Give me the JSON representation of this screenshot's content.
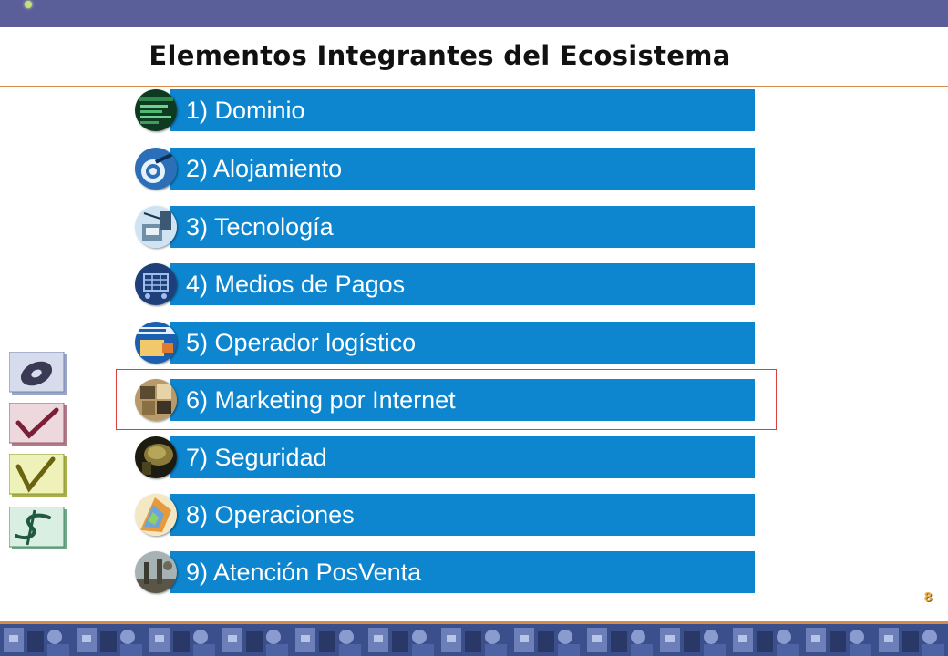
{
  "slide": {
    "title": "Elementos Integrantes del Ecosistema",
    "page_number": "8"
  },
  "items": [
    {
      "label": "1) Dominio",
      "icon": "domain-icon"
    },
    {
      "label": "2) Alojamiento",
      "icon": "hosting-icon"
    },
    {
      "label": "3) Tecnología",
      "icon": "technology-icon"
    },
    {
      "label": "4) Medios de Pagos",
      "icon": "payment-cart-icon"
    },
    {
      "label": "5) Operador logístico",
      "icon": "logistics-icon"
    },
    {
      "label": "6) Marketing por Internet",
      "icon": "marketing-icon"
    },
    {
      "label": "7) Seguridad",
      "icon": "security-icon"
    },
    {
      "label": "8) Operaciones",
      "icon": "operations-icon"
    },
    {
      "label": "9) Atención PosVenta",
      "icon": "after-sales-icon"
    }
  ],
  "highlighted_item": "6) Marketing por Internet",
  "colors": {
    "header_bar": "#5a5f9a",
    "item_bar": "#0d86cf",
    "rule": "#d98b4a",
    "highlight_border": "#d94040",
    "page_number": "#e8b24a"
  },
  "side_icons": [
    "disc-icon",
    "checkmark-red-icon",
    "checkmark-yellow-icon",
    "dollar-sign-icon"
  ]
}
